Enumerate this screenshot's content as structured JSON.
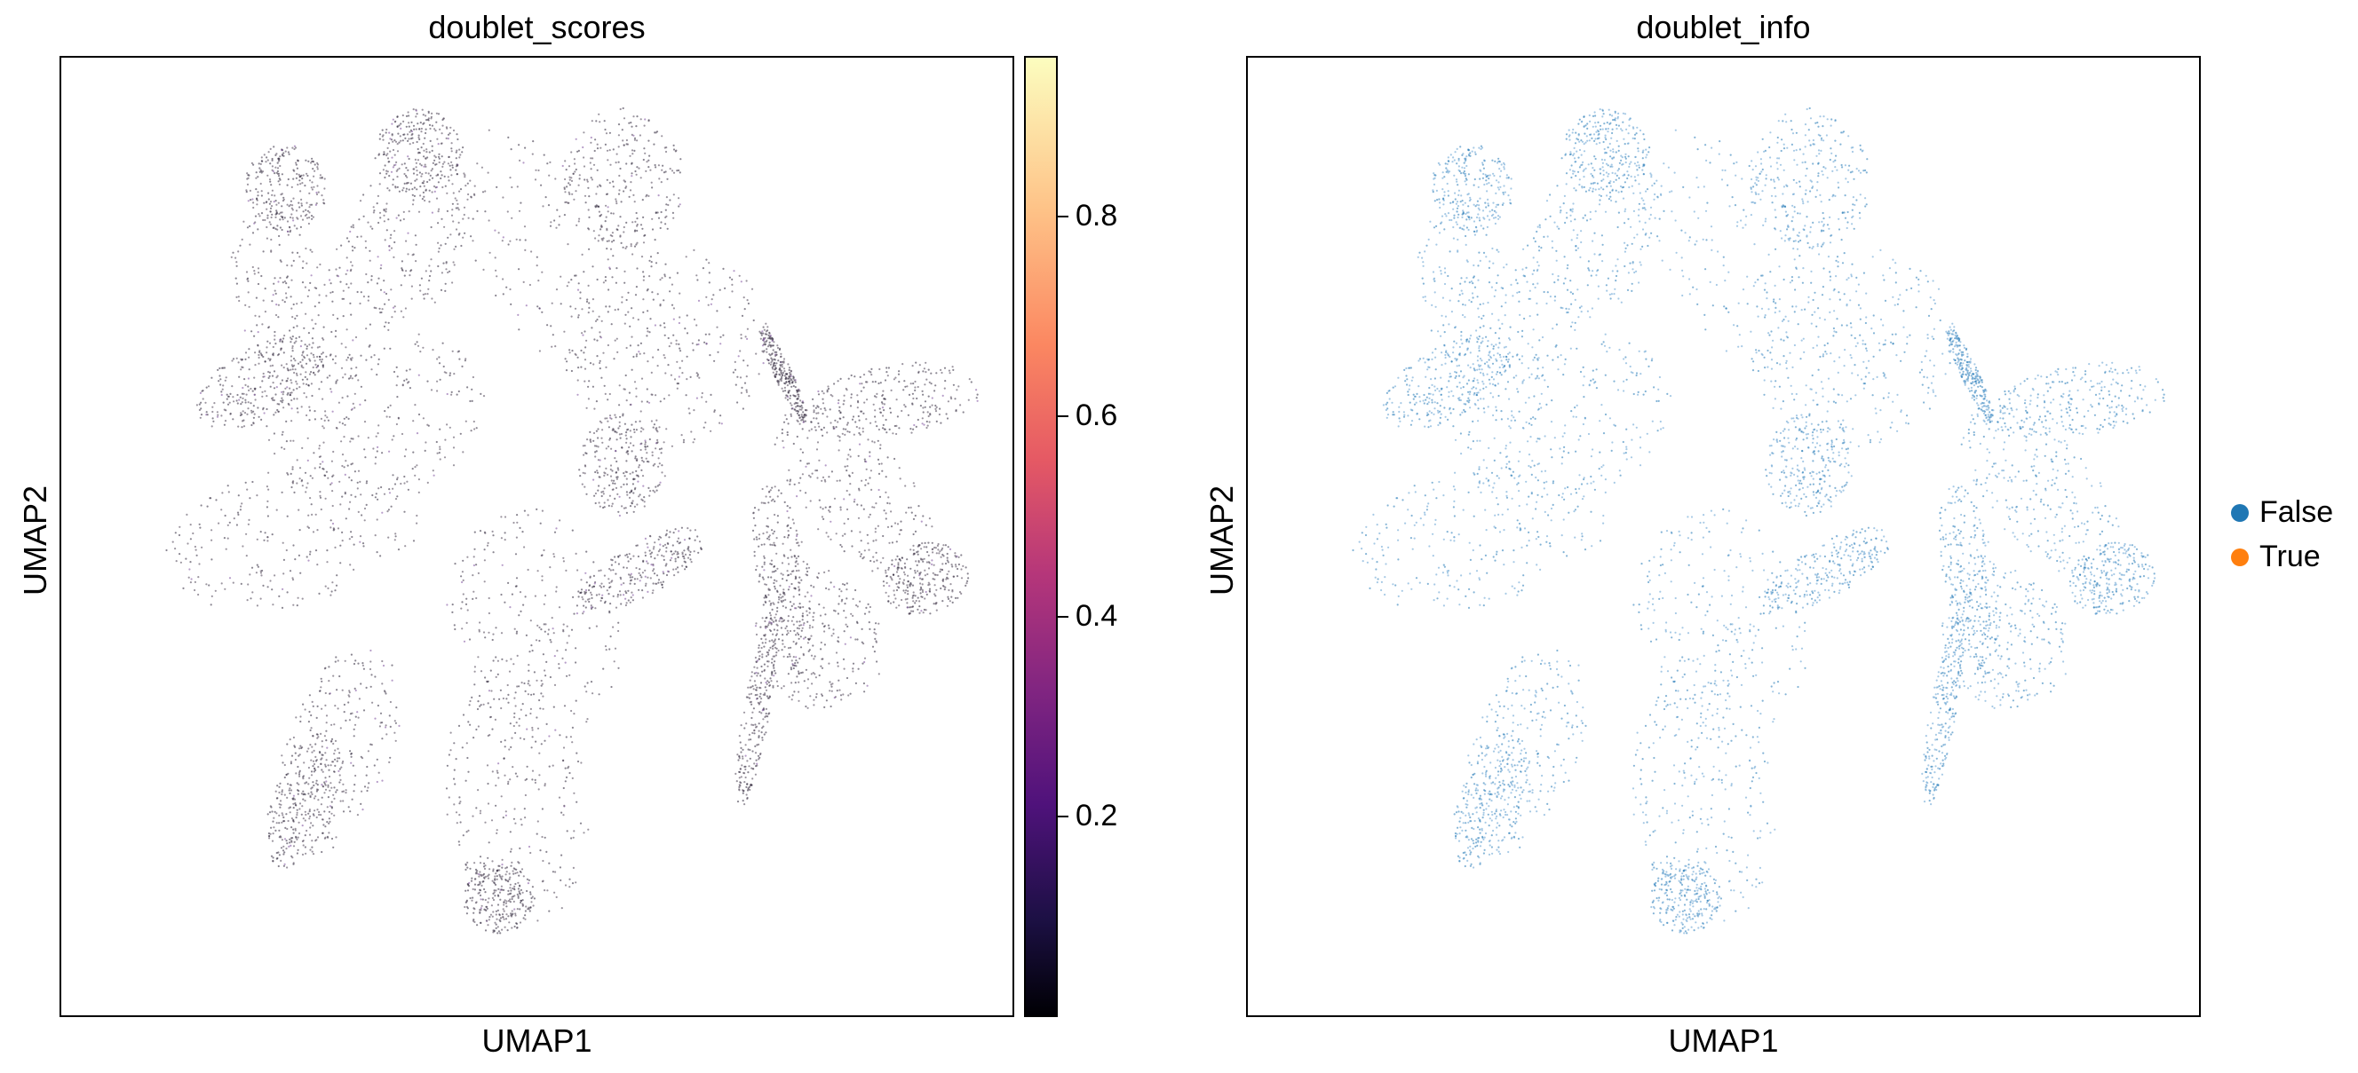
{
  "chart_data": [
    {
      "type": "scatter",
      "title": "doublet_scores",
      "xlabel": "UMAP1",
      "ylabel": "UMAP2",
      "colormap": "magma",
      "colorbar": {
        "ticks": [
          0.2,
          0.4,
          0.6,
          0.8
        ],
        "range": [
          0.0,
          0.96
        ]
      },
      "point_color_default": "#2a2236",
      "grid": false
    },
    {
      "type": "scatter",
      "title": "doublet_info",
      "xlabel": "UMAP1",
      "ylabel": "UMAP2",
      "grid": false,
      "legend": {
        "position": "right",
        "items": [
          {
            "label": "False",
            "color": "#1f77b4"
          },
          {
            "label": "True",
            "color": "#ff7f0e"
          }
        ]
      }
    }
  ]
}
